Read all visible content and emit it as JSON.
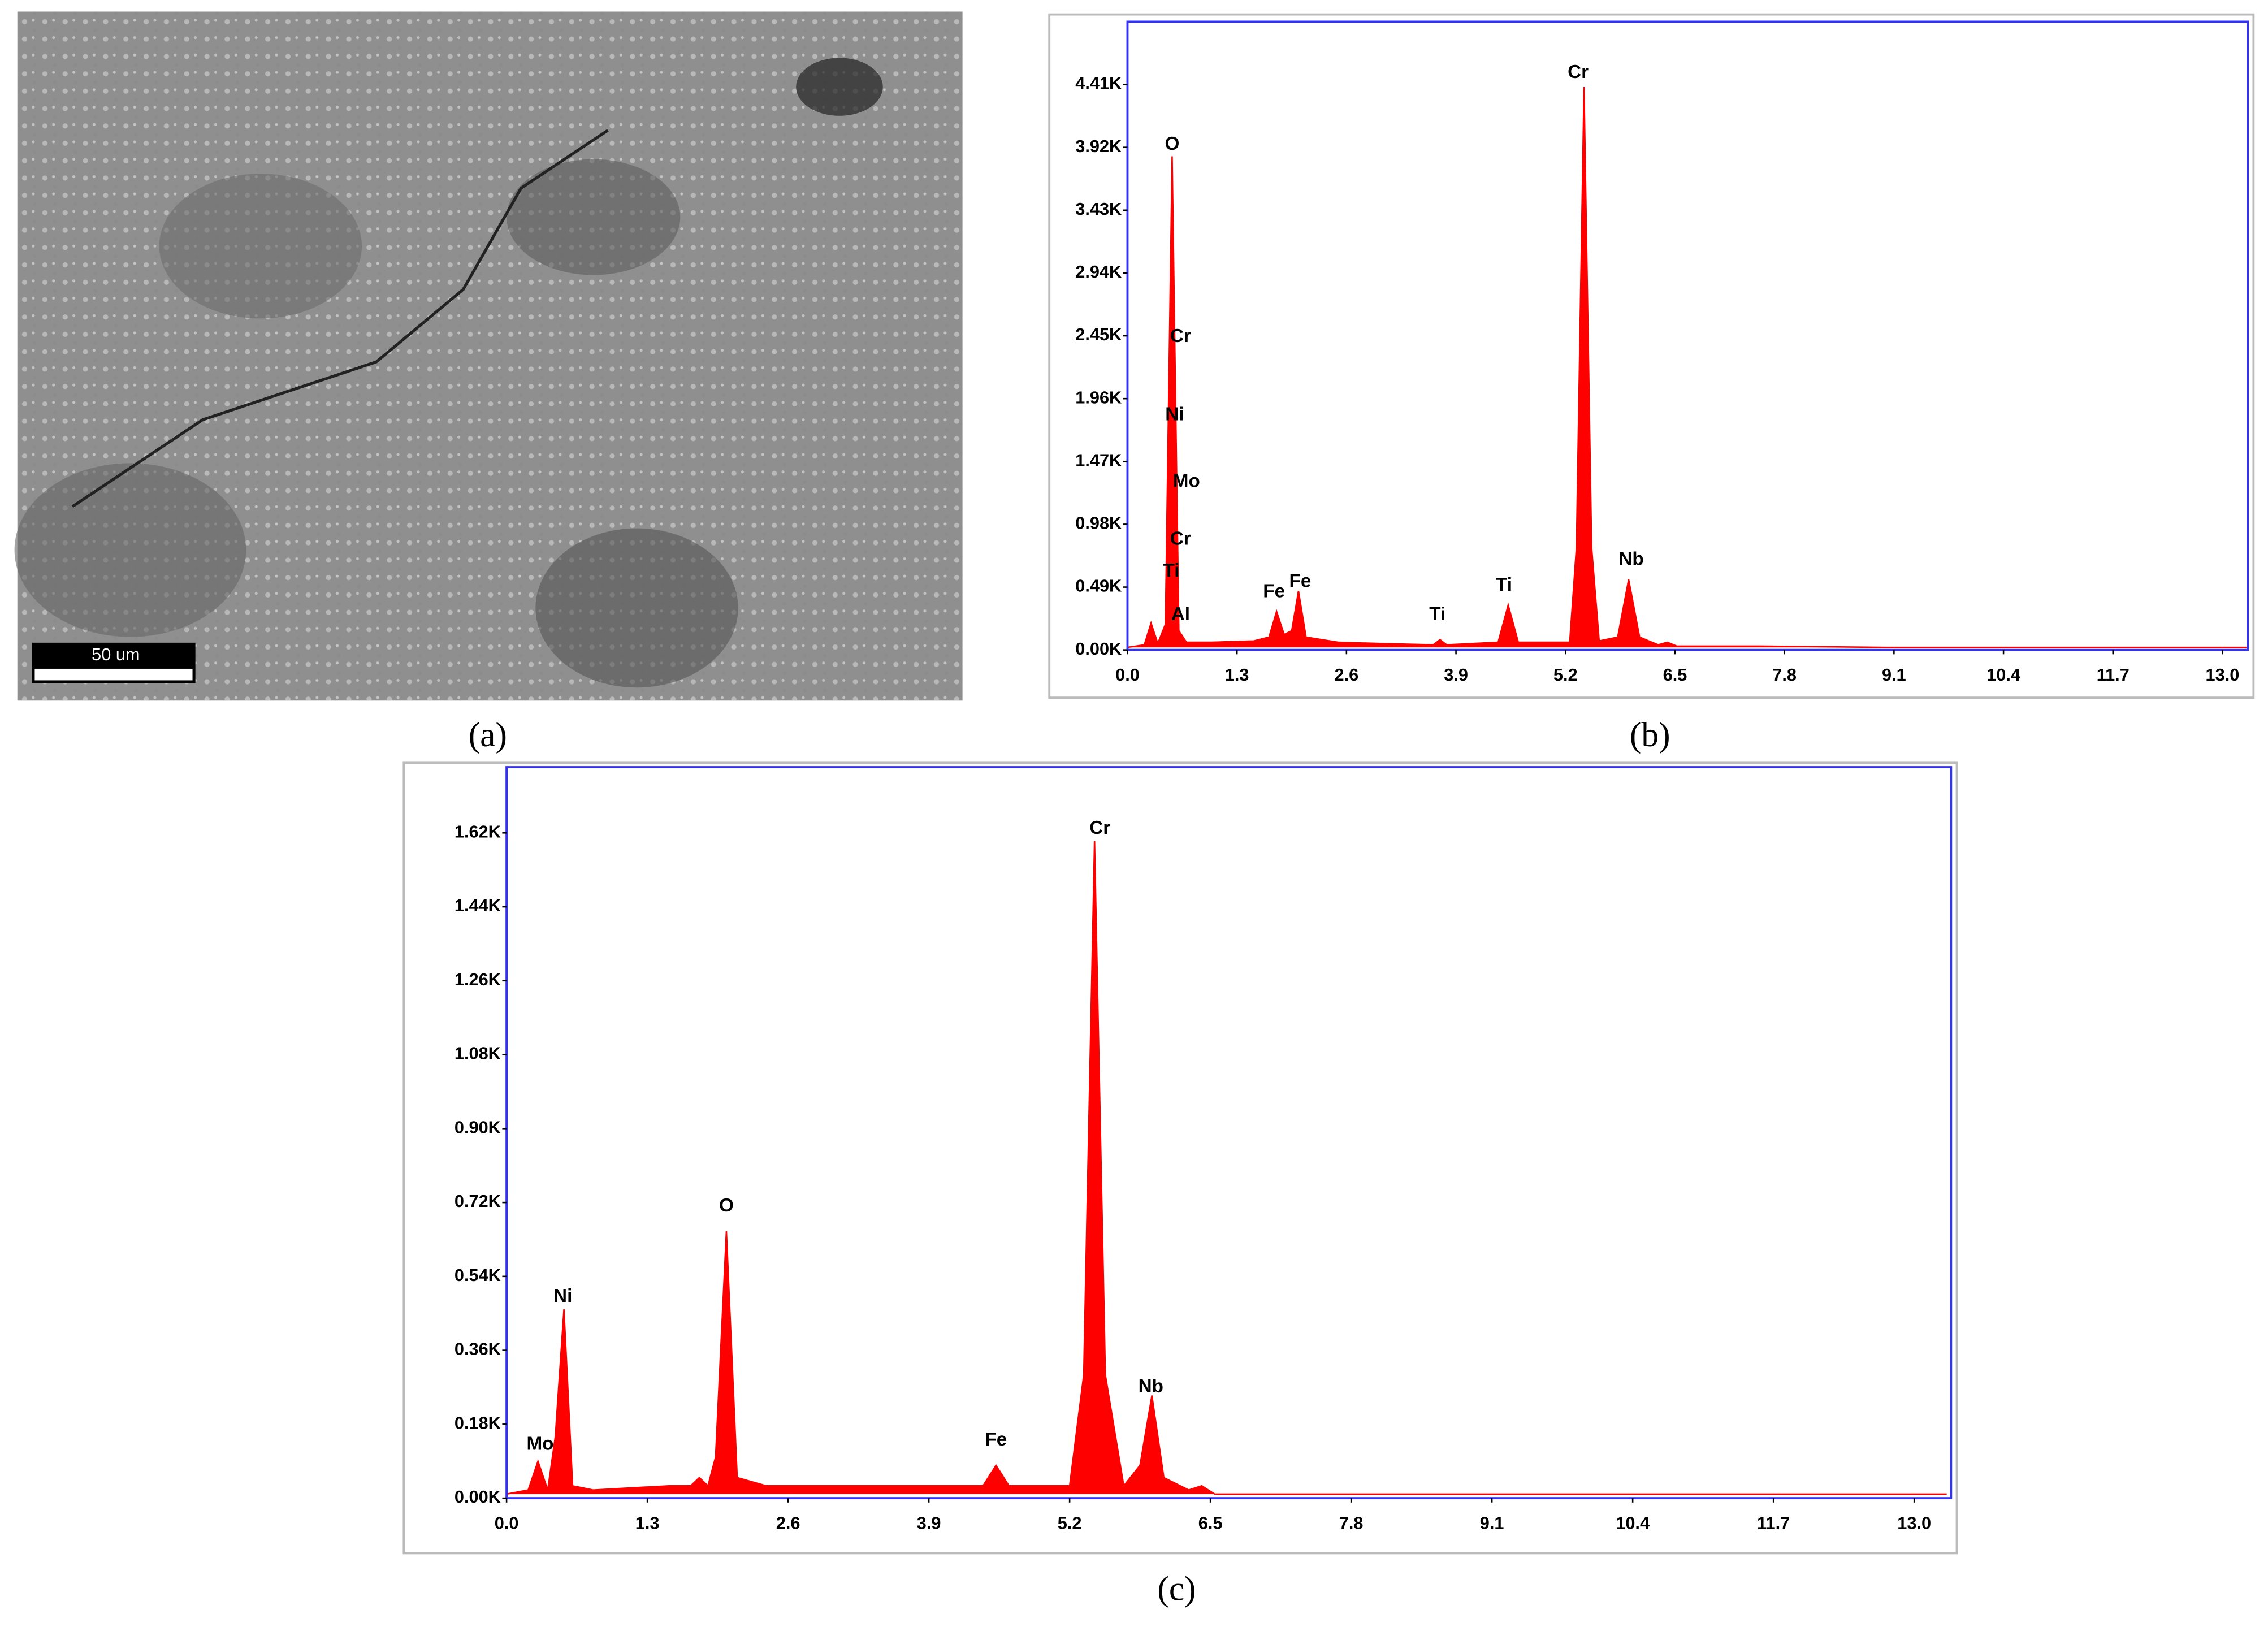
{
  "image_panel": {
    "scale_bar": "50 um",
    "label": "(a)"
  },
  "chart_data": [
    {
      "type": "area",
      "title": "(b)",
      "color": "#ff0000",
      "xlim": [
        0,
        13.3
      ],
      "ylim": [
        0,
        4.9
      ],
      "xticks": [
        {
          "value": 0,
          "label": "0.0"
        },
        1.3,
        2.6,
        3.9,
        5.2,
        6.5,
        7.8,
        9.1,
        10.4,
        11.7,
        {
          "value": 13,
          "label": "13.0"
        }
      ],
      "yticks": [
        {
          "value": 0,
          "label": "0.00K"
        },
        {
          "value": 0.49,
          "label": "0.49K"
        },
        {
          "value": 0.98,
          "label": "0.98K"
        },
        {
          "value": 1.47,
          "label": "1.47K"
        },
        {
          "value": 1.96,
          "label": "1.96K"
        },
        {
          "value": 2.45,
          "label": "2.45K"
        },
        {
          "value": 2.94,
          "label": "2.94K"
        },
        {
          "value": 3.43,
          "label": "3.43K"
        },
        {
          "value": 3.92,
          "label": "3.92K"
        },
        {
          "value": 4.41,
          "label": "4.41K"
        }
      ],
      "x": [
        0,
        0.2,
        0.28,
        0.36,
        0.45,
        0.53,
        0.61,
        0.7,
        1.0,
        1.5,
        1.68,
        1.77,
        1.86,
        1.95,
        2.03,
        2.12,
        2.5,
        3.0,
        3.63,
        3.71,
        3.79,
        4.4,
        4.52,
        4.64,
        5.25,
        5.33,
        5.42,
        5.51,
        5.6,
        5.82,
        5.95,
        6.08,
        6.3,
        6.41,
        6.52,
        7.5,
        9,
        11,
        13.3
      ],
      "values": [
        0.02,
        0.04,
        0.21,
        0.05,
        0.2,
        3.85,
        0.15,
        0.06,
        0.06,
        0.07,
        0.1,
        0.3,
        0.12,
        0.15,
        0.46,
        0.1,
        0.06,
        0.05,
        0.04,
        0.08,
        0.04,
        0.06,
        0.35,
        0.06,
        0.06,
        0.8,
        4.39,
        0.8,
        0.07,
        0.1,
        0.55,
        0.1,
        0.04,
        0.06,
        0.03,
        0.03,
        0.02,
        0.02,
        0.02
      ],
      "annotations": [
        {
          "text": "O",
          "x": 0.53,
          "y": 3.94
        },
        {
          "text": "Cr",
          "x": 0.63,
          "y": 2.44
        },
        {
          "text": "Ni",
          "x": 0.56,
          "y": 1.83
        },
        {
          "text": "Mo",
          "x": 0.7,
          "y": 1.31
        },
        {
          "text": "Cr",
          "x": 0.63,
          "y": 0.86
        },
        {
          "text": "Ti",
          "x": 0.52,
          "y": 0.61
        },
        {
          "text": "Al",
          "x": 0.63,
          "y": 0.27
        },
        {
          "text": "Fe",
          "x": 1.74,
          "y": 0.45
        },
        {
          "text": "Fe",
          "x": 2.05,
          "y": 0.53
        },
        {
          "text": "Ti",
          "x": 3.68,
          "y": 0.27
        },
        {
          "text": "Ti",
          "x": 4.47,
          "y": 0.5
        },
        {
          "text": "Cr",
          "x": 5.35,
          "y": 4.5
        },
        {
          "text": "Nb",
          "x": 5.98,
          "y": 0.7
        }
      ]
    },
    {
      "type": "area",
      "title": "(c)",
      "color": "#ff0000",
      "xlim": [
        0,
        13.34
      ],
      "ylim": [
        0,
        1.78
      ],
      "xticks": [
        {
          "value": 0,
          "label": "0.0"
        },
        1.3,
        2.6,
        3.9,
        5.2,
        6.5,
        7.8,
        9.1,
        10.4,
        11.7,
        {
          "value": 13,
          "label": "13.0"
        }
      ],
      "yticks": [
        {
          "value": 0,
          "label": "0.00K"
        },
        {
          "value": 0.18,
          "label": "0.18K"
        },
        {
          "value": 0.36,
          "label": "0.36K"
        },
        {
          "value": 0.54,
          "label": "0.54K"
        },
        {
          "value": 0.72,
          "label": "0.72K"
        },
        {
          "value": 0.9,
          "label": "0.90K"
        },
        {
          "value": 1.08,
          "label": "1.08K"
        },
        {
          "value": 1.26,
          "label": "1.26K"
        },
        {
          "value": 1.44,
          "label": "1.44K"
        },
        {
          "value": 1.62,
          "label": "1.62K"
        }
      ],
      "x": [
        0,
        0.2,
        0.29,
        0.38,
        0.45,
        0.53,
        0.61,
        0.8,
        1.5,
        1.7,
        1.78,
        1.86,
        1.93,
        2.03,
        2.13,
        2.4,
        3.2,
        3.9,
        4.4,
        4.52,
        4.64,
        5.2,
        5.33,
        5.43,
        5.53,
        5.7,
        5.85,
        5.96,
        6.07,
        6.3,
        6.42,
        6.54,
        7.5,
        9,
        11,
        13.3
      ],
      "values": [
        0.01,
        0.02,
        0.09,
        0.02,
        0.15,
        0.46,
        0.03,
        0.02,
        0.03,
        0.03,
        0.05,
        0.03,
        0.1,
        0.65,
        0.05,
        0.03,
        0.03,
        0.03,
        0.03,
        0.08,
        0.03,
        0.03,
        0.3,
        1.6,
        0.3,
        0.03,
        0.08,
        0.25,
        0.05,
        0.02,
        0.03,
        0.01,
        0.01,
        0.01,
        0.01,
        0.01
      ],
      "annotations": [
        {
          "text": "Mo",
          "x": 0.31,
          "y": 0.13
        },
        {
          "text": "Ni",
          "x": 0.52,
          "y": 0.49
        },
        {
          "text": "O",
          "x": 2.03,
          "y": 0.71
        },
        {
          "text": "Fe",
          "x": 4.52,
          "y": 0.14
        },
        {
          "text": "Cr",
          "x": 5.48,
          "y": 1.63
        },
        {
          "text": "Nb",
          "x": 5.95,
          "y": 0.27
        }
      ]
    }
  ]
}
